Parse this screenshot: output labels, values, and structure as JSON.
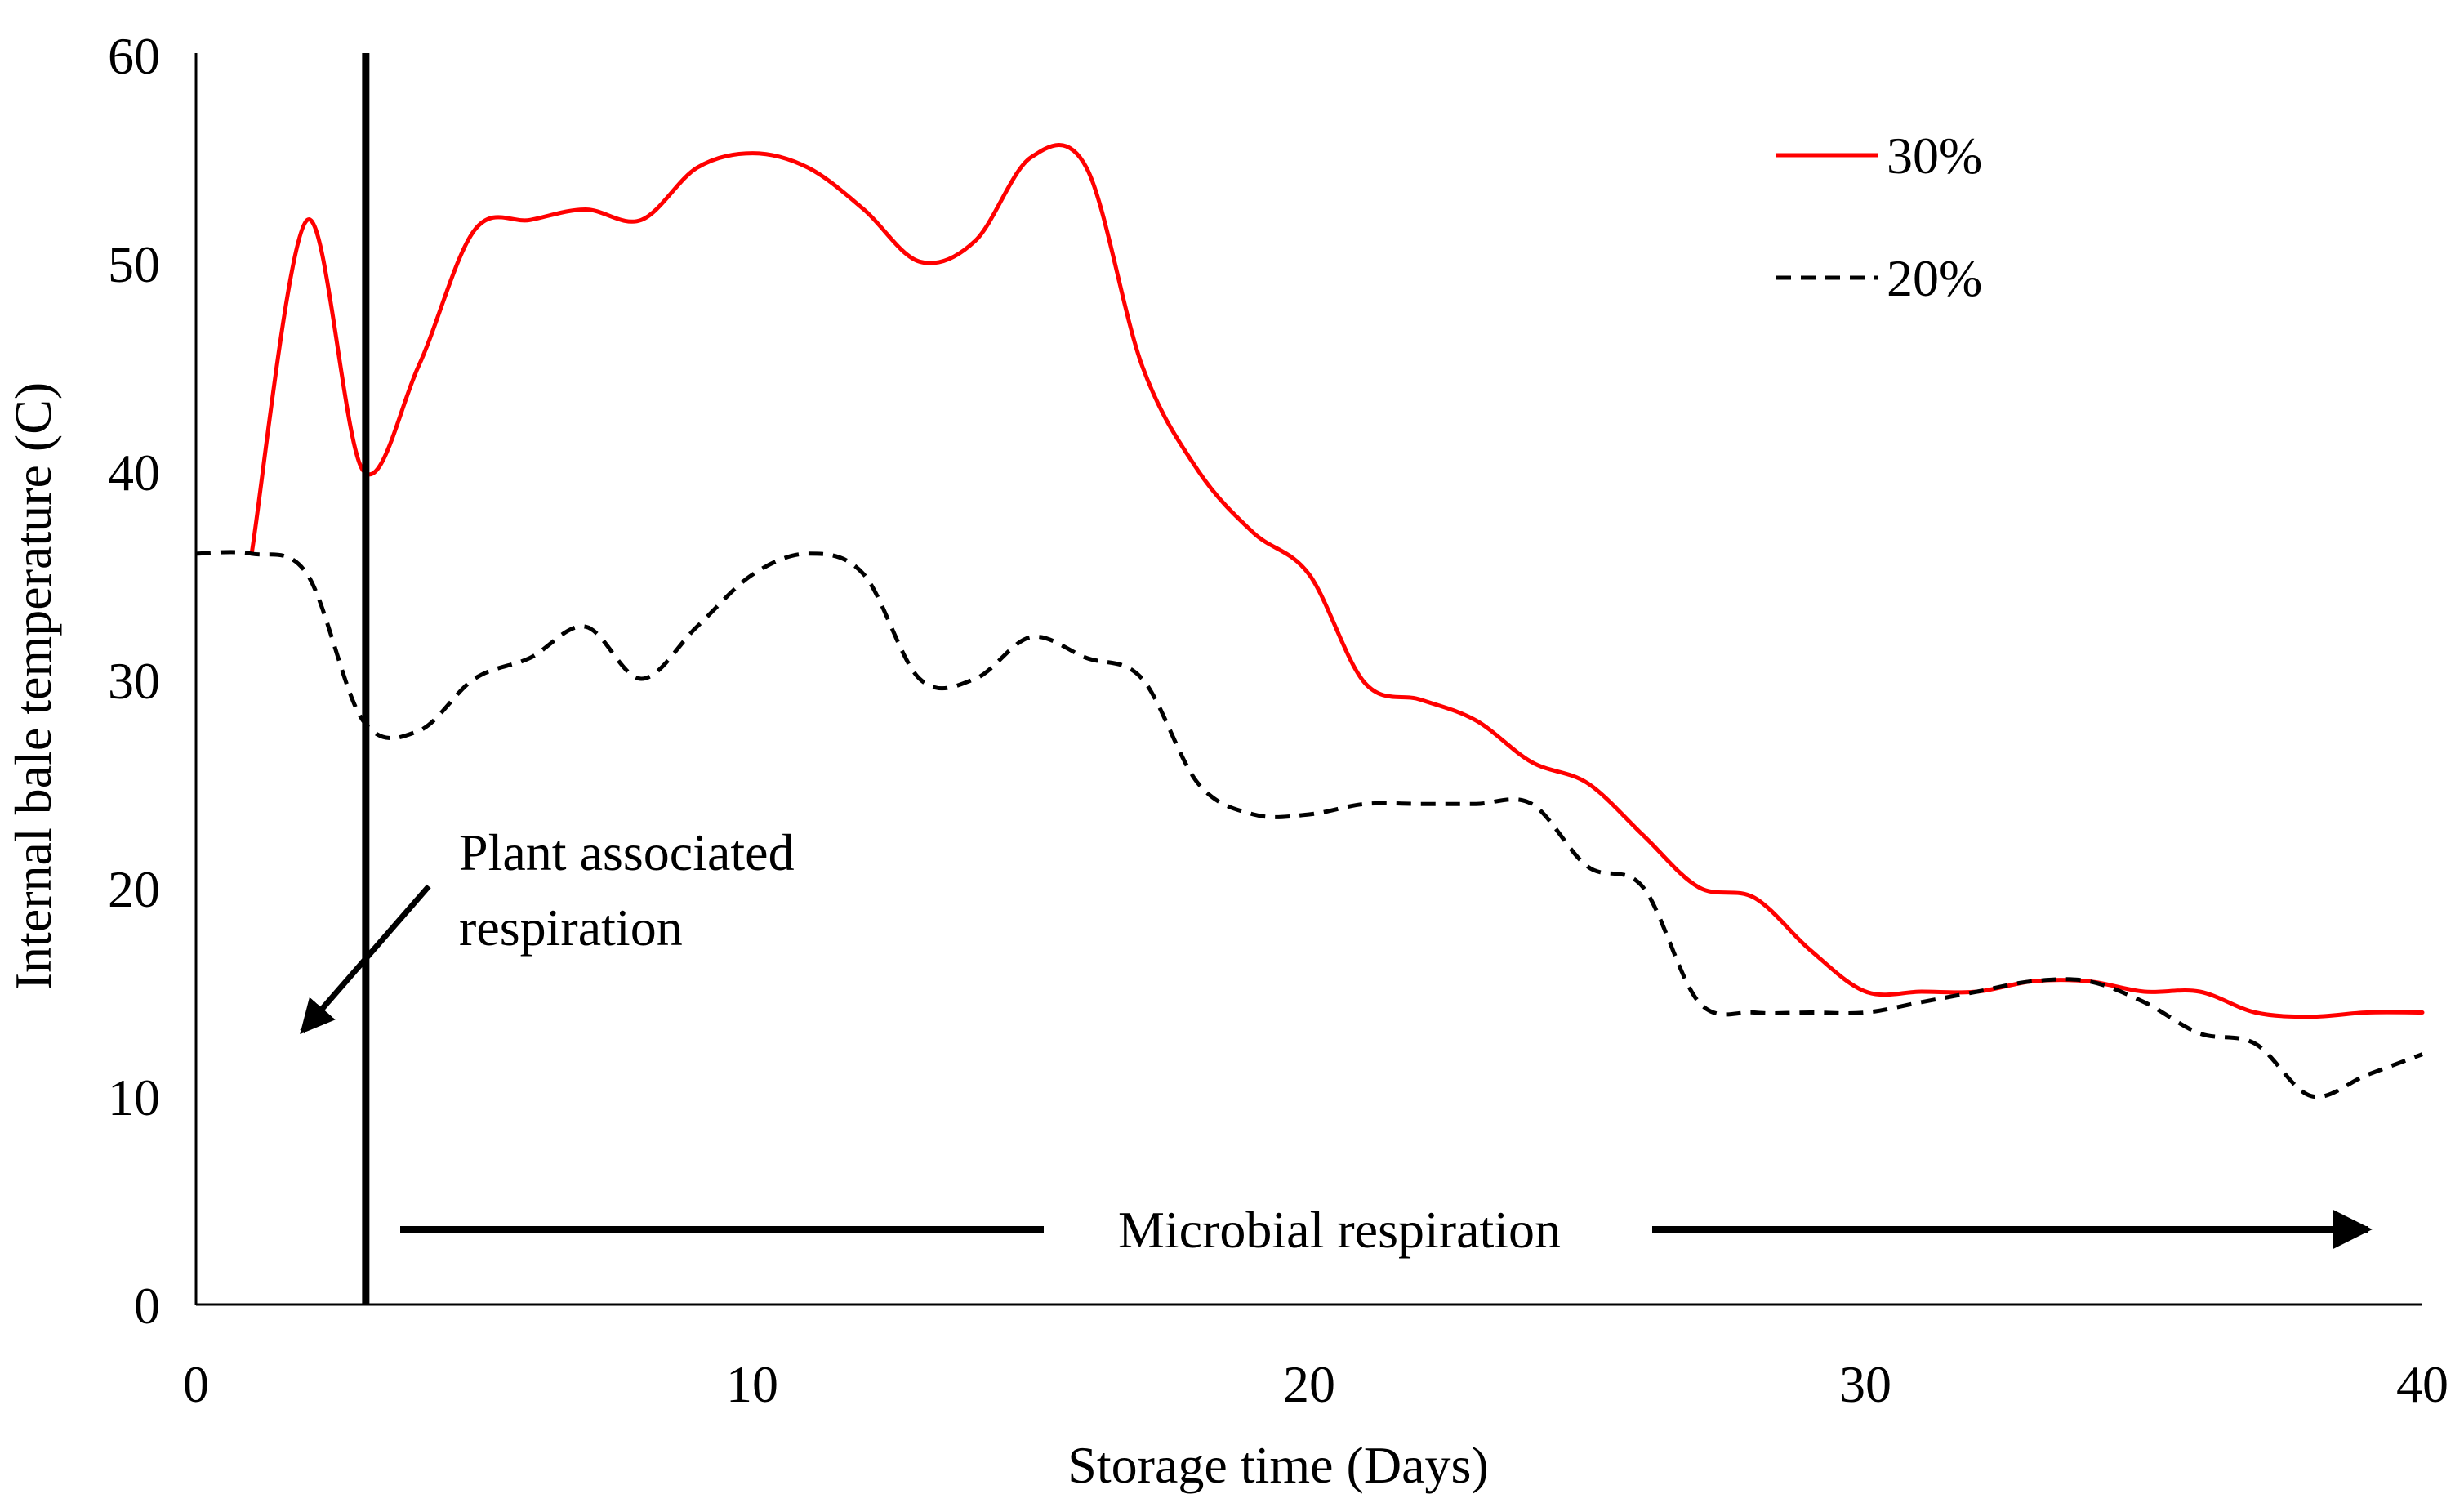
{
  "chart_data": {
    "type": "line",
    "title": "",
    "xlabel": "Storage time (Days)",
    "ylabel": "Internal bale temperature (C)",
    "xlim": [
      0,
      40
    ],
    "ylim": [
      0,
      60
    ],
    "xticks": [
      0,
      10,
      20,
      30,
      40
    ],
    "yticks": [
      0,
      10,
      20,
      30,
      40,
      50,
      60
    ],
    "grid": false,
    "legend_position": "top-right",
    "colors": {
      "series_30": "#ff0000",
      "series_20": "#000000",
      "axis": "#000000"
    },
    "series": [
      {
        "name": "30%",
        "style": "solid",
        "points": [
          [
            1,
            36.0
          ],
          [
            2,
            52.0
          ],
          [
            3,
            40.0
          ],
          [
            4,
            45.0
          ],
          [
            5,
            51.5
          ],
          [
            6,
            52.0
          ],
          [
            7,
            52.5
          ],
          [
            8,
            52.0
          ],
          [
            9,
            54.5
          ],
          [
            10,
            55.2
          ],
          [
            11,
            54.5
          ],
          [
            12,
            52.5
          ],
          [
            13,
            50.0
          ],
          [
            14,
            51.0
          ],
          [
            15,
            55.0
          ],
          [
            16,
            54.5
          ],
          [
            17,
            45.0
          ],
          [
            18,
            40.0
          ],
          [
            19,
            37.0
          ],
          [
            20,
            35.0
          ],
          [
            21,
            29.8
          ],
          [
            22,
            29.0
          ],
          [
            23,
            28.0
          ],
          [
            24,
            26.0
          ],
          [
            25,
            25.0
          ],
          [
            26,
            22.5
          ],
          [
            27,
            20.0
          ],
          [
            28,
            19.5
          ],
          [
            29,
            17.0
          ],
          [
            30,
            15.0
          ],
          [
            31,
            15.0
          ],
          [
            32,
            15.0
          ],
          [
            33,
            15.5
          ],
          [
            34,
            15.5
          ],
          [
            35,
            15.0
          ],
          [
            36,
            15.0
          ],
          [
            37,
            14.0
          ],
          [
            38,
            13.8
          ],
          [
            39,
            14.0
          ],
          [
            40,
            14.0
          ]
        ]
      },
      {
        "name": "20%",
        "style": "dashed",
        "points": [
          [
            0,
            36.0
          ],
          [
            1,
            36.0
          ],
          [
            2,
            35.0
          ],
          [
            3,
            28.0
          ],
          [
            4,
            27.5
          ],
          [
            5,
            30.0
          ],
          [
            6,
            31.0
          ],
          [
            7,
            32.5
          ],
          [
            8,
            30.0
          ],
          [
            9,
            32.5
          ],
          [
            10,
            35.0
          ],
          [
            11,
            36.0
          ],
          [
            12,
            35.0
          ],
          [
            13,
            30.0
          ],
          [
            14,
            30.0
          ],
          [
            15,
            32.0
          ],
          [
            16,
            31.0
          ],
          [
            17,
            30.0
          ],
          [
            18,
            25.0
          ],
          [
            19,
            23.5
          ],
          [
            20,
            23.5
          ],
          [
            21,
            24.0
          ],
          [
            22,
            24.0
          ],
          [
            23,
            24.0
          ],
          [
            24,
            24.0
          ],
          [
            25,
            21.0
          ],
          [
            26,
            20.0
          ],
          [
            27,
            14.5
          ],
          [
            28,
            14.0
          ],
          [
            29,
            14.0
          ],
          [
            30,
            14.0
          ],
          [
            31,
            14.5
          ],
          [
            32,
            15.0
          ],
          [
            33,
            15.5
          ],
          [
            34,
            15.5
          ],
          [
            35,
            14.5
          ],
          [
            36,
            13.0
          ],
          [
            37,
            12.5
          ],
          [
            38,
            10.0
          ],
          [
            39,
            11.0
          ],
          [
            40,
            12.0
          ]
        ]
      }
    ],
    "vertical_marker_x": 3.05,
    "annotations": {
      "plant_line1": "Plant associated",
      "plant_line2": "respiration",
      "microbial": "Microbial respiration"
    }
  }
}
